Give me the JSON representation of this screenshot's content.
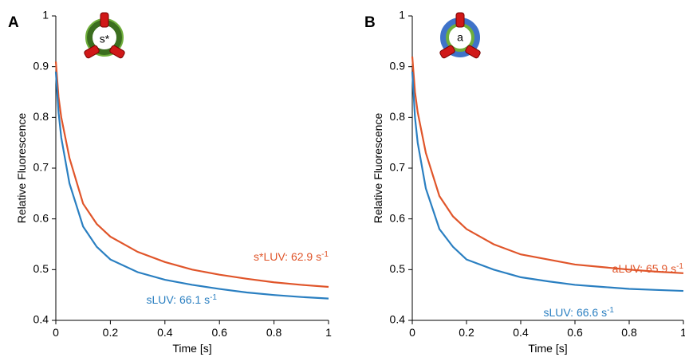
{
  "chart_data": [
    {
      "type": "line",
      "panel_label": "A",
      "icon_label": "s*",
      "xlabel": "Time [s]",
      "ylabel": "Relative Fluorescence",
      "x": [
        0,
        0.01,
        0.02,
        0.05,
        0.1,
        0.15,
        0.2,
        0.3,
        0.4,
        0.5,
        0.6,
        0.7,
        0.8,
        0.9,
        1
      ],
      "xlim": [
        0,
        1
      ],
      "xticks": [
        0,
        0.2,
        0.4,
        0.6,
        0.8,
        1
      ],
      "ylim": [
        0.4,
        1
      ],
      "yticks": [
        0.4,
        0.5,
        0.6,
        0.7,
        0.8,
        0.9,
        1
      ],
      "series": [
        {
          "name": "s*LUV: 62.9 s",
          "name_sup": "-1",
          "color": "#e0552a",
          "values": [
            0.91,
            0.84,
            0.8,
            0.72,
            0.63,
            0.59,
            0.565,
            0.535,
            0.515,
            0.5,
            0.49,
            0.482,
            0.475,
            0.47,
            0.466
          ]
        },
        {
          "name": "sLUV: 66.1 s",
          "name_sup": "-1",
          "color": "#2a7fc1",
          "values": [
            0.89,
            0.81,
            0.76,
            0.67,
            0.585,
            0.545,
            0.52,
            0.495,
            0.48,
            0.47,
            0.462,
            0.455,
            0.45,
            0.446,
            0.443
          ]
        }
      ]
    },
    {
      "type": "line",
      "panel_label": "B",
      "icon_label": "a",
      "xlabel": "Time [s]",
      "ylabel": "Relative Fluorescence",
      "x": [
        0,
        0.01,
        0.02,
        0.05,
        0.1,
        0.15,
        0.2,
        0.3,
        0.4,
        0.5,
        0.6,
        0.7,
        0.8,
        0.9,
        1
      ],
      "xlim": [
        0,
        1
      ],
      "xticks": [
        0,
        0.2,
        0.4,
        0.6,
        0.8,
        1
      ],
      "ylim": [
        0.4,
        1
      ],
      "yticks": [
        0.4,
        0.5,
        0.6,
        0.7,
        0.8,
        0.9,
        1
      ],
      "series": [
        {
          "name": "aLUV: 65.9 s",
          "name_sup": "-1",
          "color": "#e0552a",
          "values": [
            0.92,
            0.85,
            0.81,
            0.73,
            0.645,
            0.605,
            0.58,
            0.55,
            0.53,
            0.52,
            0.51,
            0.505,
            0.5,
            0.496,
            0.493
          ]
        },
        {
          "name": "sLUV: 66.6 s",
          "name_sup": "-1",
          "color": "#2a7fc1",
          "values": [
            0.89,
            0.8,
            0.75,
            0.66,
            0.58,
            0.545,
            0.52,
            0.5,
            0.485,
            0.477,
            0.47,
            0.466,
            0.462,
            0.46,
            0.458
          ]
        }
      ]
    }
  ]
}
